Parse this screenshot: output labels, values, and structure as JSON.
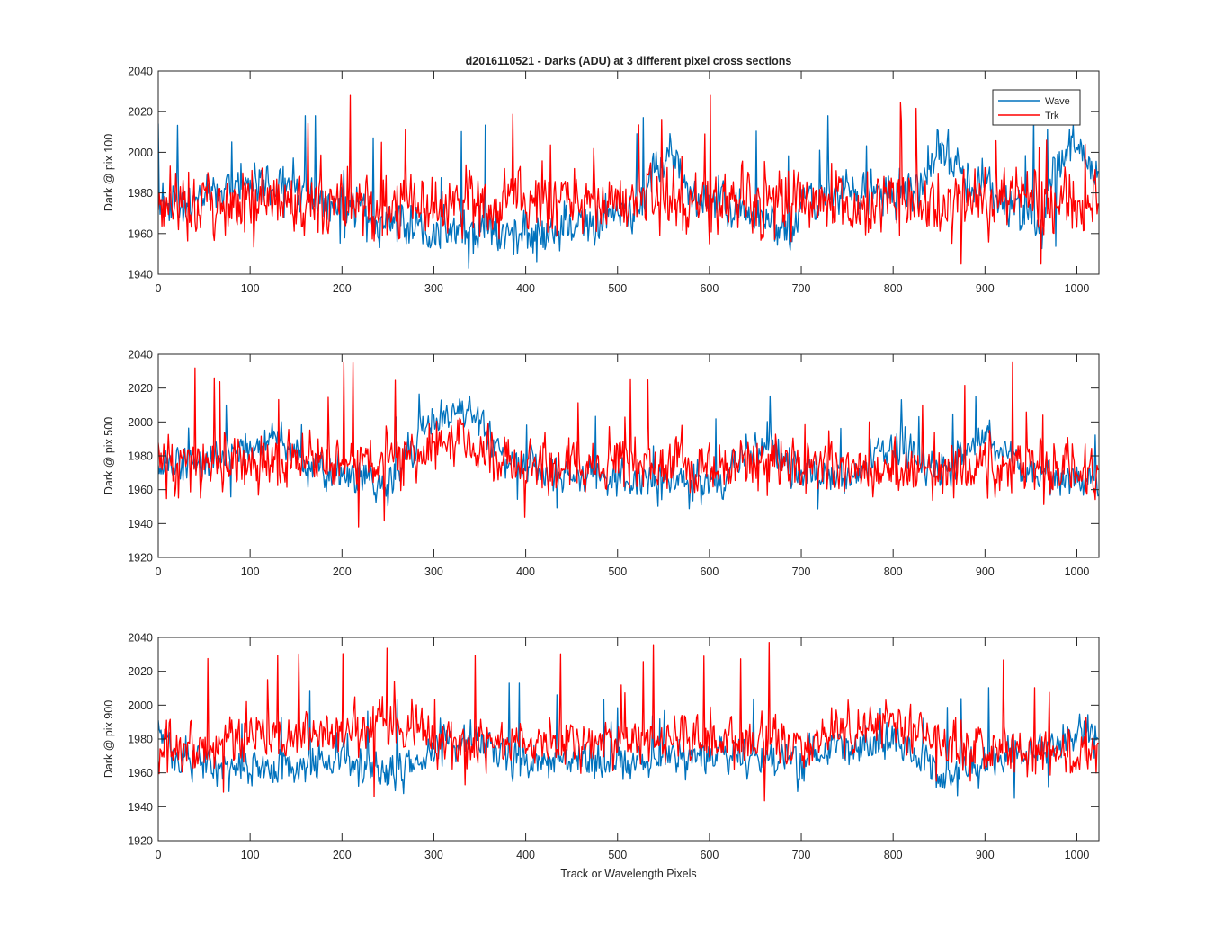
{
  "chart_data": [
    {
      "type": "line",
      "title": "d2016110521 - Darks (ADU) at 3 different pixel cross sections",
      "xlabel": "",
      "ylabel": "Dark @ pix 100",
      "xlim": [
        0,
        1024
      ],
      "ylim": [
        1940,
        2040
      ],
      "xticks": [
        0,
        100,
        200,
        300,
        400,
        500,
        600,
        700,
        800,
        900,
        1000
      ],
      "yticks": [
        1940,
        1960,
        1980,
        2000,
        2020,
        2040
      ],
      "legend": {
        "placement": "top-right",
        "entries": [
          "Wave",
          "Trk"
        ]
      },
      "grid": false,
      "series": [
        {
          "name": "Wave",
          "color": "#0072BD",
          "base": 1971,
          "sd": 6,
          "knots": [
            [
              0,
              1975
            ],
            [
              130,
              1985
            ],
            [
              160,
              1978
            ],
            [
              240,
              1968
            ],
            [
              300,
              1961
            ],
            [
              430,
              1960
            ],
            [
              520,
              1972
            ],
            [
              556,
              2001
            ],
            [
              580,
              1979
            ],
            [
              660,
              1968
            ],
            [
              690,
              1959
            ],
            [
              700,
              1976
            ],
            [
              830,
              1983
            ],
            [
              850,
              2007
            ],
            [
              870,
              1992
            ],
            [
              900,
              1983
            ],
            [
              960,
              1962
            ],
            [
              975,
              1992
            ],
            [
              1000,
              2005
            ],
            [
              1024,
              1985
            ]
          ],
          "min": 1940,
          "max": 2018
        },
        {
          "name": "Trk",
          "color": "#FF0000",
          "base": 1976,
          "sd": 9,
          "knots": [
            [
              0,
              1976
            ],
            [
              1024,
              1976
            ]
          ],
          "min": 1945,
          "max": 2028
        }
      ]
    },
    {
      "type": "line",
      "title": "",
      "xlabel": "",
      "ylabel": "Dark @ pix 500",
      "xlim": [
        0,
        1024
      ],
      "ylim": [
        1920,
        2040
      ],
      "xticks": [
        0,
        100,
        200,
        300,
        400,
        500,
        600,
        700,
        800,
        900,
        1000
      ],
      "yticks": [
        1920,
        1940,
        1960,
        1980,
        2000,
        2020,
        2040
      ],
      "grid": false,
      "series": [
        {
          "name": "Wave",
          "color": "#0072BD",
          "base": 1970,
          "sd": 6,
          "knots": [
            [
              0,
              1972
            ],
            [
              130,
              1990
            ],
            [
              160,
              1973
            ],
            [
              250,
              1963
            ],
            [
              300,
              2002
            ],
            [
              340,
              2007
            ],
            [
              380,
              1978
            ],
            [
              450,
              1968
            ],
            [
              560,
              1966
            ],
            [
              600,
              1962
            ],
            [
              665,
              1990
            ],
            [
              680,
              1972
            ],
            [
              740,
              1965
            ],
            [
              790,
              1985
            ],
            [
              810,
              1985
            ],
            [
              850,
              1972
            ],
            [
              900,
              1993
            ],
            [
              940,
              1970
            ],
            [
              1024,
              1965
            ]
          ],
          "min": 1948,
          "max": 2018
        },
        {
          "name": "Trk",
          "color": "#FF0000",
          "base": 1974,
          "sd": 9,
          "knots": [
            [
              0,
              1974
            ],
            [
              290,
              1980
            ],
            [
              330,
              1990
            ],
            [
              380,
              1975
            ],
            [
              1024,
              1972
            ]
          ],
          "min": 1938,
          "max": 2035
        }
      ]
    },
    {
      "type": "line",
      "title": "",
      "xlabel": "Track or Wavelength Pixels",
      "ylabel": "Dark @ pix 900",
      "xlim": [
        0,
        1024
      ],
      "ylim": [
        1920,
        2040
      ],
      "xticks": [
        0,
        100,
        200,
        300,
        400,
        500,
        600,
        700,
        800,
        900,
        1000
      ],
      "yticks": [
        1920,
        1940,
        1960,
        1980,
        2000,
        2020,
        2040
      ],
      "grid": false,
      "series": [
        {
          "name": "Wave",
          "color": "#0072BD",
          "base": 1968,
          "sd": 6,
          "knots": [
            [
              0,
              1985
            ],
            [
              20,
              1968
            ],
            [
              100,
              1962
            ],
            [
              200,
              1970
            ],
            [
              260,
              1958
            ],
            [
              300,
              1975
            ],
            [
              360,
              1980
            ],
            [
              380,
              1968
            ],
            [
              500,
              1966
            ],
            [
              600,
              1970
            ],
            [
              700,
              1968
            ],
            [
              800,
              1978
            ],
            [
              860,
              1960
            ],
            [
              900,
              1965
            ],
            [
              1024,
              1985
            ]
          ],
          "min": 1945,
          "max": 2013
        },
        {
          "name": "Trk",
          "color": "#FF0000",
          "base": 1973,
          "sd": 8,
          "knots": [
            [
              0,
              1973
            ],
            [
              280,
              1990
            ],
            [
              300,
              1978
            ],
            [
              700,
              1978
            ],
            [
              800,
              1990
            ],
            [
              860,
              1975
            ],
            [
              1024,
              1970
            ]
          ],
          "min": 1937,
          "max": 2037
        }
      ]
    }
  ]
}
